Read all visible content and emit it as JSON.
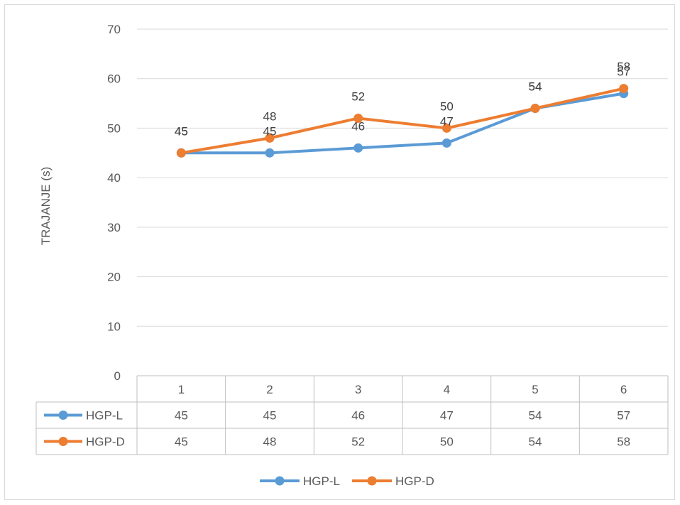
{
  "chart_data": {
    "type": "line",
    "categories": [
      "1",
      "2",
      "3",
      "4",
      "5",
      "6"
    ],
    "series": [
      {
        "name": "HGP-L",
        "color": "#5b9bd5",
        "values": [
          45,
          45,
          46,
          47,
          54,
          57
        ]
      },
      {
        "name": "HGP-D",
        "color": "#ed7d31",
        "values": [
          45,
          48,
          52,
          50,
          54,
          58
        ]
      }
    ],
    "title": "",
    "xlabel": "",
    "ylabel": "TRAJANJE (s)",
    "ylim": [
      0,
      70
    ],
    "yticks": [
      0,
      10,
      20,
      30,
      40,
      50,
      60,
      70
    ],
    "grid": true,
    "data_table": true,
    "legend_position": "bottom"
  }
}
